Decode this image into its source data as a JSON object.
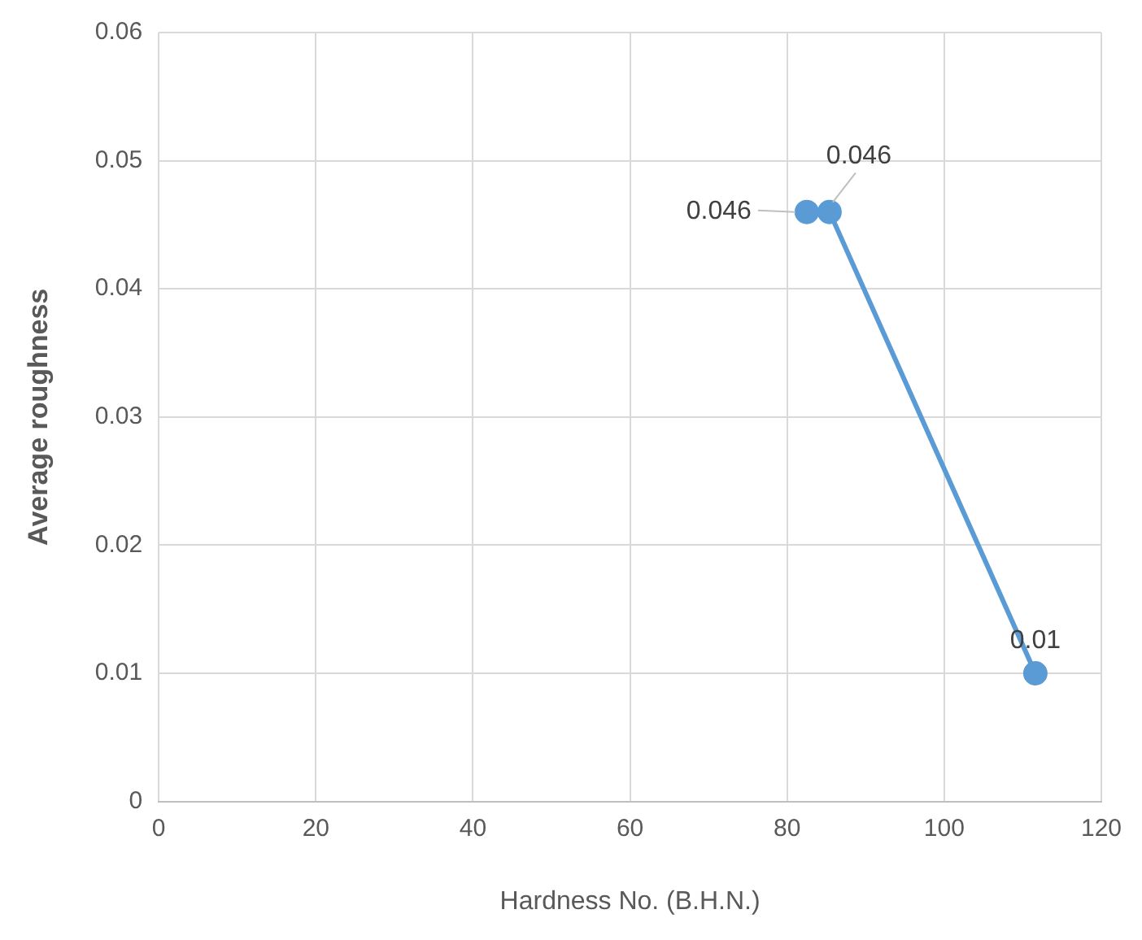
{
  "chart_data": {
    "type": "line",
    "xlabel": "Hardness No. (B.H.N.)",
    "ylabel": "Average roughness",
    "x": [
      82.5,
      85.4,
      111.6
    ],
    "values": [
      0.046,
      0.046,
      0.01
    ],
    "color": "#5b9bd5",
    "xlim": [
      0,
      120
    ],
    "xticks": [
      0,
      20,
      40,
      60,
      80,
      100,
      120
    ],
    "ylim": [
      0,
      0.06
    ],
    "yticks": [
      0,
      0.01,
      0.02,
      0.03,
      0.04,
      0.05,
      0.06
    ],
    "grid": true,
    "marker": "circle",
    "data_labels": true,
    "legend": false
  }
}
